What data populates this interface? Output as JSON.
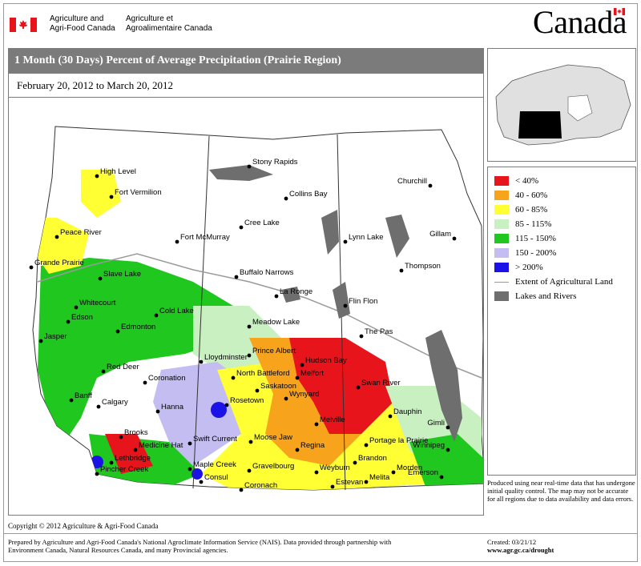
{
  "header": {
    "dept_en_line1": "Agriculture and",
    "dept_en_line2": "Agri-Food Canada",
    "dept_fr_line1": "Agriculture et",
    "dept_fr_line2": "Agroalimentaire Canada",
    "wordmark": "Canada"
  },
  "title": "1 Month (30 Days) Percent of Average Precipitation  (Prairie Region)",
  "date_range": "February 20, 2012 to March 20, 2012",
  "legend": {
    "items": [
      {
        "label": "< 40%",
        "color": "#e8141b"
      },
      {
        "label": "40 - 60%",
        "color": "#f7a31c"
      },
      {
        "label": "60 - 85%",
        "color": "#ffff33"
      },
      {
        "label": "85 - 115%",
        "color": "#c8f0c0"
      },
      {
        "label": "115 - 150%",
        "color": "#1fc71f"
      },
      {
        "label": "150 - 200%",
        "color": "#c4bdf2"
      },
      {
        "label": "> 200%",
        "color": "#1a12e6"
      }
    ],
    "agri_extent_label": "Extent of Agricultural Land",
    "agri_extent_color": "#9a9a9a",
    "lakes_label": "Lakes and Rivers",
    "lakes_color": "#6e6e6e"
  },
  "note": "Produced using near real-time data that has undergone initial quality control.  The map may not be accurate for all regions due to data availability and data errors.",
  "cities": [
    {
      "name": "High Level"
    },
    {
      "name": "Fort Vermilion"
    },
    {
      "name": "Peace River"
    },
    {
      "name": "Fort McMurray"
    },
    {
      "name": "Grande Prairie"
    },
    {
      "name": "Slave Lake"
    },
    {
      "name": "Whitecourt"
    },
    {
      "name": "Edson"
    },
    {
      "name": "Jasper"
    },
    {
      "name": "Edmonton"
    },
    {
      "name": "Cold Lake"
    },
    {
      "name": "Red Deer"
    },
    {
      "name": "Coronation"
    },
    {
      "name": "Banff"
    },
    {
      "name": "Calgary"
    },
    {
      "name": "Hanna"
    },
    {
      "name": "Brooks"
    },
    {
      "name": "Medicine Hat"
    },
    {
      "name": "Lethbridge"
    },
    {
      "name": "Pincher Creek"
    },
    {
      "name": "Swift Current"
    },
    {
      "name": "Maple Creek"
    },
    {
      "name": "Consul"
    },
    {
      "name": "Rosetown"
    },
    {
      "name": "Lloydminster"
    },
    {
      "name": "North Battleford"
    },
    {
      "name": "Meadow Lake"
    },
    {
      "name": "Prince Albert"
    },
    {
      "name": "Saskatoon"
    },
    {
      "name": "Wynyard"
    },
    {
      "name": "Moose Jaw"
    },
    {
      "name": "Regina"
    },
    {
      "name": "Gravelbourg"
    },
    {
      "name": "Coronach"
    },
    {
      "name": "Weyburn"
    },
    {
      "name": "Estevan"
    },
    {
      "name": "Melfort"
    },
    {
      "name": "Hudson Bay"
    },
    {
      "name": "Swan River"
    },
    {
      "name": "Melville"
    },
    {
      "name": "Dauphin"
    },
    {
      "name": "Portage la Prairie"
    },
    {
      "name": "Brandon"
    },
    {
      "name": "Melita"
    },
    {
      "name": "Morden"
    },
    {
      "name": "Winnipeg"
    },
    {
      "name": "Gimli"
    },
    {
      "name": "Emerson"
    },
    {
      "name": "The Pas"
    },
    {
      "name": "Flin Flon"
    },
    {
      "name": "Thompson"
    },
    {
      "name": "Gillam"
    },
    {
      "name": "Churchill"
    },
    {
      "name": "Lynn Lake"
    },
    {
      "name": "Stony Rapids"
    },
    {
      "name": "Collins Bay"
    },
    {
      "name": "Cree Lake"
    },
    {
      "name": "Buffalo Narrows"
    },
    {
      "name": "La Ronge"
    }
  ],
  "footer": {
    "copyright": "Copyright © 2012 Agriculture & Agri-Food Canada",
    "prepared_line1": "Prepared by Agriculture and Agri-Food Canada's National Agroclimate Information Service (NAIS).  Data provided through partnership with",
    "prepared_line2": "Environment Canada, Natural Resources Canada, and many Provincial agencies.",
    "created": "Created: 03/21/12",
    "url": "www.agr.gc.ca/drought"
  }
}
